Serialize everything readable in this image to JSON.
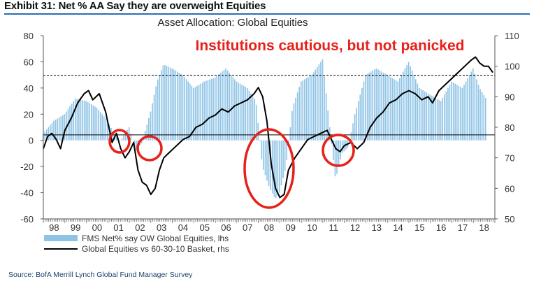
{
  "exhibit_title": "Exhibit 31: Net % AA Say they are overweight Equities",
  "source": "Source:  BofA Merrill Lynch Global Fund Manager Survey",
  "chart_data": {
    "type": "bar",
    "title": "Asset Allocation: Global Equities",
    "annotation": "Institutions cautious, but not panicked",
    "annotation_color": "#e8201a",
    "bar_color": "#8ec3e6",
    "line_color": "#000000",
    "circle_color": "#e8201a",
    "grid": false,
    "legend_position": "bottom-left",
    "x_tick_labels": [
      "98",
      "99",
      "00",
      "01",
      "02",
      "03",
      "04",
      "05",
      "06",
      "07",
      "08",
      "09",
      "10",
      "11",
      "12",
      "13",
      "14",
      "15",
      "16",
      "17",
      "18"
    ],
    "x_range": [
      1998,
      2019
    ],
    "y_left": {
      "ticks": [
        80,
        60,
        40,
        20,
        0,
        -20,
        -40,
        -60
      ],
      "ylim": [
        -60,
        80
      ]
    },
    "y_right": {
      "ticks": [
        110,
        100,
        90,
        80,
        70,
        60,
        50
      ],
      "ylim": [
        50,
        110
      ]
    },
    "reference_lines": [
      {
        "axis": "right",
        "value": 97,
        "style": "dashed"
      },
      {
        "axis": "right",
        "value": 77.5,
        "style": "solid"
      }
    ],
    "series": [
      {
        "name": "FMS Net% say OW Global Equities, lhs",
        "axis": "left",
        "type": "bar",
        "x": [
          1998.0,
          1998.5,
          1999.0,
          1999.5,
          2000.0,
          2000.5,
          2001.0,
          2001.3,
          2001.6,
          2002.0,
          2002.3,
          2002.6,
          2003.0,
          2003.3,
          2003.6,
          2004.0,
          2004.5,
          2005.0,
          2005.5,
          2006.0,
          2006.5,
          2007.0,
          2007.5,
          2007.9,
          2008.2,
          2008.5,
          2008.8,
          2009.0,
          2009.3,
          2009.6,
          2010.0,
          2010.5,
          2011.0,
          2011.3,
          2011.6,
          2011.9,
          2012.2,
          2012.5,
          2013.0,
          2013.5,
          2014.0,
          2014.5,
          2015.0,
          2015.5,
          2016.0,
          2016.5,
          2017.0,
          2017.5,
          2018.0,
          2018.3,
          2018.6
        ],
        "values": [
          5,
          15,
          20,
          32,
          30,
          25,
          15,
          5,
          0,
          10,
          -8,
          -2,
          22,
          45,
          58,
          55,
          50,
          40,
          45,
          48,
          55,
          45,
          40,
          30,
          -20,
          -35,
          -45,
          -40,
          -20,
          25,
          45,
          50,
          62,
          15,
          -30,
          -10,
          -5,
          20,
          50,
          55,
          50,
          45,
          60,
          40,
          35,
          30,
          45,
          40,
          55,
          40,
          32
        ]
      },
      {
        "name": "Global Equities vs 60-30-10 Basket, rhs",
        "axis": "right",
        "type": "line",
        "x": [
          1998.0,
          1998.2,
          1998.4,
          1998.6,
          1998.8,
          1999.0,
          1999.3,
          1999.6,
          1999.9,
          2000.1,
          2000.3,
          2000.6,
          2000.9,
          2001.2,
          2001.4,
          2001.6,
          2001.8,
          2002.0,
          2002.2,
          2002.4,
          2002.6,
          2002.8,
          2003.0,
          2003.2,
          2003.4,
          2003.6,
          2003.9,
          2004.2,
          2004.5,
          2004.8,
          2005.1,
          2005.4,
          2005.7,
          2006.0,
          2006.3,
          2006.6,
          2006.9,
          2007.2,
          2007.5,
          2007.8,
          2008.0,
          2008.2,
          2008.4,
          2008.6,
          2008.8,
          2009.0,
          2009.2,
          2009.4,
          2009.7,
          2010.0,
          2010.3,
          2010.6,
          2010.9,
          2011.2,
          2011.4,
          2011.6,
          2011.8,
          2012.0,
          2012.3,
          2012.6,
          2012.9,
          2013.2,
          2013.5,
          2013.8,
          2014.1,
          2014.4,
          2014.7,
          2015.0,
          2015.3,
          2015.6,
          2015.9,
          2016.1,
          2016.4,
          2016.7,
          2017.0,
          2017.3,
          2017.6,
          2017.9,
          2018.1,
          2018.3,
          2018.5,
          2018.7,
          2018.9
        ],
        "values": [
          73,
          77,
          78,
          76,
          73,
          79,
          83,
          88,
          91,
          92,
          89,
          91,
          85,
          75,
          78,
          73,
          70,
          72,
          75,
          66,
          62,
          61,
          58,
          60,
          66,
          70,
          72,
          74,
          76,
          77,
          80,
          81,
          83,
          84,
          86,
          85,
          87,
          88,
          89,
          91,
          93,
          90,
          82,
          68,
          60,
          57,
          58,
          66,
          70,
          73,
          76,
          77,
          78,
          79,
          76,
          73,
          72,
          74,
          75,
          73,
          75,
          80,
          83,
          85,
          88,
          89,
          91,
          92,
          91,
          89,
          90,
          88,
          92,
          94,
          96,
          98,
          100,
          102,
          103,
          101,
          100,
          100,
          98
        ]
      }
    ]
  }
}
